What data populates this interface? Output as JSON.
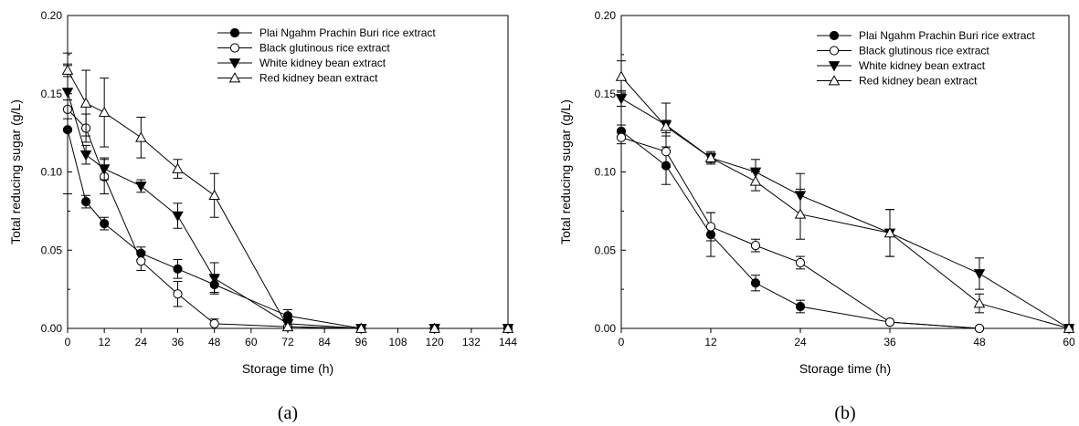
{
  "chart_data": [
    {
      "type": "line",
      "panel_label": "(a)",
      "xlabel": "Storage time (h)",
      "ylabel": "Total reducing sugar (g/L)",
      "xlim": [
        0,
        144
      ],
      "ylim": [
        0,
        0.2
      ],
      "xticks": [
        "0",
        "12",
        "24",
        "36",
        "48",
        "60",
        "72",
        "84",
        "96",
        "108",
        "120",
        "132",
        "144"
      ],
      "yticks": [
        "0.00",
        "0.05",
        "0.10",
        "0.15",
        "0.20"
      ],
      "legend_position": "top-right",
      "grid": false,
      "series": [
        {
          "name": "Plai Ngahm Prachin Buri rice extract",
          "marker": "filled-circle",
          "x": [
            0,
            6,
            12,
            24,
            36,
            48,
            72,
            96,
            120,
            144
          ],
          "y": [
            0.127,
            0.081,
            0.067,
            0.048,
            0.038,
            0.028,
            0.008,
            0.0,
            0.0,
            0.0
          ],
          "err": [
            0.041,
            0.004,
            0.004,
            0.004,
            0.006,
            0.005,
            0.004,
            0.001,
            0.001,
            0.001
          ]
        },
        {
          "name": "Black glutinous rice extract",
          "marker": "open-circle",
          "x": [
            0,
            6,
            12,
            24,
            36,
            48,
            72,
            96,
            120,
            144
          ],
          "y": [
            0.14,
            0.128,
            0.097,
            0.043,
            0.022,
            0.003,
            0.001,
            0.0,
            0.0,
            0.0
          ],
          "err": [
            0.006,
            0.009,
            0.011,
            0.006,
            0.008,
            0.003,
            0.001,
            0.001,
            0.001,
            0.001
          ]
        },
        {
          "name": "White kidney bean extract",
          "marker": "filled-triangle-down",
          "x": [
            0,
            6,
            12,
            24,
            36,
            48,
            72,
            96,
            120,
            144
          ],
          "y": [
            0.151,
            0.111,
            0.102,
            0.091,
            0.072,
            0.032,
            0.003,
            0.0,
            0.0,
            0.0
          ],
          "err": [
            0.025,
            0.006,
            0.007,
            0.004,
            0.008,
            0.01,
            0.003,
            0.001,
            0.001,
            0.001
          ]
        },
        {
          "name": "Red kidney bean extract",
          "marker": "open-triangle-up",
          "x": [
            0,
            6,
            12,
            24,
            36,
            48,
            72,
            96,
            120,
            144
          ],
          "y": [
            0.165,
            0.144,
            0.138,
            0.122,
            0.102,
            0.085,
            0.001,
            0.0,
            0.0,
            0.0
          ],
          "err": [
            0.004,
            0.021,
            0.022,
            0.013,
            0.006,
            0.014,
            0.001,
            0.001,
            0.001,
            0.001
          ]
        }
      ]
    },
    {
      "type": "line",
      "panel_label": "(b)",
      "xlabel": "Storage time (h)",
      "ylabel": "Total reducing sugar (g/L)",
      "xlim": [
        0,
        60
      ],
      "ylim": [
        0,
        0.2
      ],
      "xticks": [
        "0",
        "12",
        "24",
        "36",
        "48",
        "60"
      ],
      "yticks": [
        "0.00",
        "0.05",
        "0.10",
        "0.15",
        "0.20"
      ],
      "legend_position": "top-right",
      "grid": false,
      "series": [
        {
          "name": "Plai Ngahm Prachin Buri rice extract",
          "marker": "filled-circle",
          "x": [
            0,
            6,
            12,
            18,
            24,
            36,
            48,
            60
          ],
          "y": [
            0.126,
            0.104,
            0.06,
            0.029,
            0.014,
            0.004,
            0.0,
            0.0
          ],
          "err": [
            0.004,
            0.012,
            0.014,
            0.005,
            0.004,
            0.001,
            0.001,
            0.001
          ]
        },
        {
          "name": "Black glutinous rice extract",
          "marker": "open-circle",
          "x": [
            0,
            6,
            12,
            18,
            24,
            36,
            48,
            60
          ],
          "y": [
            0.122,
            0.113,
            0.065,
            0.053,
            0.042,
            0.004,
            0.0,
            0.0
          ],
          "err": [
            0.004,
            0.01,
            0.009,
            0.004,
            0.004,
            0.001,
            0.001,
            0.001
          ]
        },
        {
          "name": "White kidney bean extract",
          "marker": "filled-triangle-down",
          "x": [
            0,
            6,
            12,
            18,
            24,
            36,
            48,
            60
          ],
          "y": [
            0.147,
            0.13,
            0.109,
            0.1,
            0.085,
            0.061,
            0.035,
            0.0
          ],
          "err": [
            0.005,
            0.014,
            0.004,
            0.008,
            0.014,
            0.015,
            0.01,
            0.001
          ]
        },
        {
          "name": "Red kidney bean extract",
          "marker": "open-triangle-up",
          "x": [
            0,
            6,
            12,
            18,
            24,
            36,
            48,
            60
          ],
          "y": [
            0.161,
            0.129,
            0.109,
            0.094,
            0.073,
            0.061,
            0.016,
            0.0
          ],
          "err": [
            0.01,
            0.004,
            0.003,
            0.006,
            0.016,
            0.015,
            0.006,
            0.001
          ]
        }
      ]
    }
  ]
}
